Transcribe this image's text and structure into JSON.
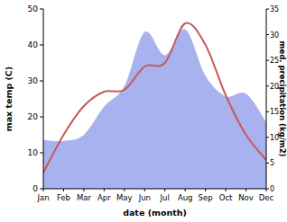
{
  "chart_data": {
    "type": "line",
    "x_label": "date (month)",
    "y_label": "max temp (C)",
    "y2_label": "med. precipitation (kg/m2)",
    "categories": [
      "Jan",
      "Feb",
      "Mar",
      "Apr",
      "May",
      "Jun",
      "Jul",
      "Aug",
      "Sep",
      "Oct",
      "Nov",
      "Dec"
    ],
    "series": [
      {
        "name": "med. precipitation (kg/m2)",
        "type": "area",
        "axis": "y2",
        "color": "#a8b2ee",
        "values": [
          9.5,
          9.3,
          10.5,
          16,
          20,
          30.5,
          26,
          31,
          22,
          18,
          18.5,
          13
        ]
      },
      {
        "name": "max temp (C)",
        "type": "line",
        "color": "#c8585a",
        "values": [
          4.5,
          15,
          23,
          27,
          27.5,
          34,
          35,
          46,
          40,
          26,
          15,
          8
        ]
      }
    ],
    "ylim": [
      0,
      50
    ],
    "yticks": [
      0,
      10,
      20,
      30,
      40,
      50
    ],
    "y2lim": [
      0,
      35
    ],
    "y2ticks": [
      0,
      5,
      10,
      15,
      20,
      25,
      30,
      35
    ],
    "grid": false
  }
}
